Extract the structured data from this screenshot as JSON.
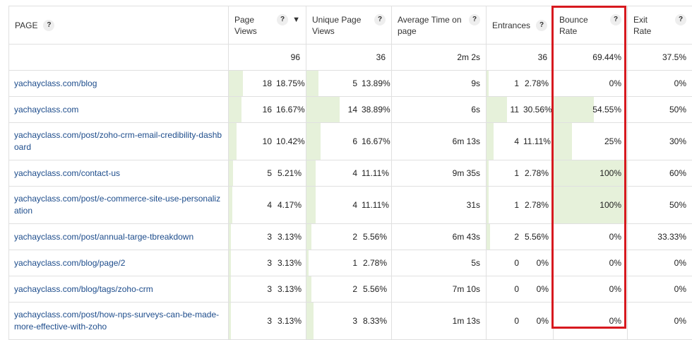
{
  "columns": [
    {
      "label": "PAGE",
      "help": "?"
    },
    {
      "label": "Page Views",
      "help": "?",
      "sort": "▼"
    },
    {
      "label": "Unique Page Views",
      "help": "?"
    },
    {
      "label": "Average Time on page",
      "help": "?"
    },
    {
      "label": "Entrances",
      "help": "?"
    },
    {
      "label": "Bounce Rate",
      "help": "?"
    },
    {
      "label": "Exit Rate",
      "help": "?"
    }
  ],
  "totals": {
    "pageviews": "96",
    "unique": "36",
    "avgtime": "2m 2s",
    "entrances": "36",
    "bounce": "69.44%",
    "exit": "37.5%"
  },
  "rows": [
    {
      "page": "yachayclass.com/blog",
      "pv": "18",
      "pvp": "18.75%",
      "pvf": 0.1875,
      "uv": "5",
      "uvp": "13.89%",
      "uvf": 0.1389,
      "time": "9s",
      "en": "1",
      "enp": "2.78%",
      "enf": 0.0278,
      "bounce": "0%",
      "bouncef": 0,
      "exit": "0%"
    },
    {
      "page": "yachayclass.com",
      "pv": "16",
      "pvp": "16.67%",
      "pvf": 0.1667,
      "uv": "14",
      "uvp": "38.89%",
      "uvf": 0.3889,
      "time": "6s",
      "en": "11",
      "enp": "30.56%",
      "enf": 0.3056,
      "bounce": "54.55%",
      "bouncef": 0.5455,
      "exit": "50%"
    },
    {
      "page": "yachayclass.com/post/zoho-crm-email-credibility-dashboard",
      "pv": "10",
      "pvp": "10.42%",
      "pvf": 0.1042,
      "uv": "6",
      "uvp": "16.67%",
      "uvf": 0.1667,
      "time": "6m 13s",
      "en": "4",
      "enp": "11.11%",
      "enf": 0.1111,
      "bounce": "25%",
      "bouncef": 0.25,
      "exit": "30%"
    },
    {
      "page": "yachayclass.com/contact-us",
      "pv": "5",
      "pvp": "5.21%",
      "pvf": 0.0521,
      "uv": "4",
      "uvp": "11.11%",
      "uvf": 0.1111,
      "time": "9m 35s",
      "en": "1",
      "enp": "2.78%",
      "enf": 0.0278,
      "bounce": "100%",
      "bouncef": 1,
      "exit": "60%"
    },
    {
      "page": "yachayclass.com/post/e-commerce-site-use-personalization",
      "pv": "4",
      "pvp": "4.17%",
      "pvf": 0.0417,
      "uv": "4",
      "uvp": "11.11%",
      "uvf": 0.1111,
      "time": "31s",
      "en": "1",
      "enp": "2.78%",
      "enf": 0.0278,
      "bounce": "100%",
      "bouncef": 1,
      "exit": "50%"
    },
    {
      "page": "yachayclass.com/post/annual-targe-tbreakdown",
      "pv": "3",
      "pvp": "3.13%",
      "pvf": 0.0313,
      "uv": "2",
      "uvp": "5.56%",
      "uvf": 0.0556,
      "time": "6m 43s",
      "en": "2",
      "enp": "5.56%",
      "enf": 0.0556,
      "bounce": "0%",
      "bouncef": 0,
      "exit": "33.33%"
    },
    {
      "page": "yachayclass.com/blog/page/2",
      "pv": "3",
      "pvp": "3.13%",
      "pvf": 0.0313,
      "uv": "1",
      "uvp": "2.78%",
      "uvf": 0.0278,
      "time": "5s",
      "en": "0",
      "enp": "0%",
      "enf": 0,
      "bounce": "0%",
      "bouncef": 0,
      "exit": "0%"
    },
    {
      "page": "yachayclass.com/blog/tags/zoho-crm",
      "pv": "3",
      "pvp": "3.13%",
      "pvf": 0.0313,
      "uv": "2",
      "uvp": "5.56%",
      "uvf": 0.0556,
      "time": "7m 10s",
      "en": "0",
      "enp": "0%",
      "enf": 0,
      "bounce": "0%",
      "bouncef": 0,
      "exit": "0%"
    },
    {
      "page": "yachayclass.com/post/how-nps-surveys-can-be-made-more-effective-with-zoho",
      "pv": "3",
      "pvp": "3.13%",
      "pvf": 0.0313,
      "uv": "3",
      "uvp": "8.33%",
      "uvf": 0.0833,
      "time": "1m 13s",
      "en": "0",
      "enp": "0%",
      "enf": 0,
      "bounce": "0%",
      "bouncef": 0,
      "exit": "0%"
    }
  ],
  "colors": {
    "bar": "#e6f1da",
    "link": "#1e4d8c",
    "highlight": "#d7191f"
  }
}
